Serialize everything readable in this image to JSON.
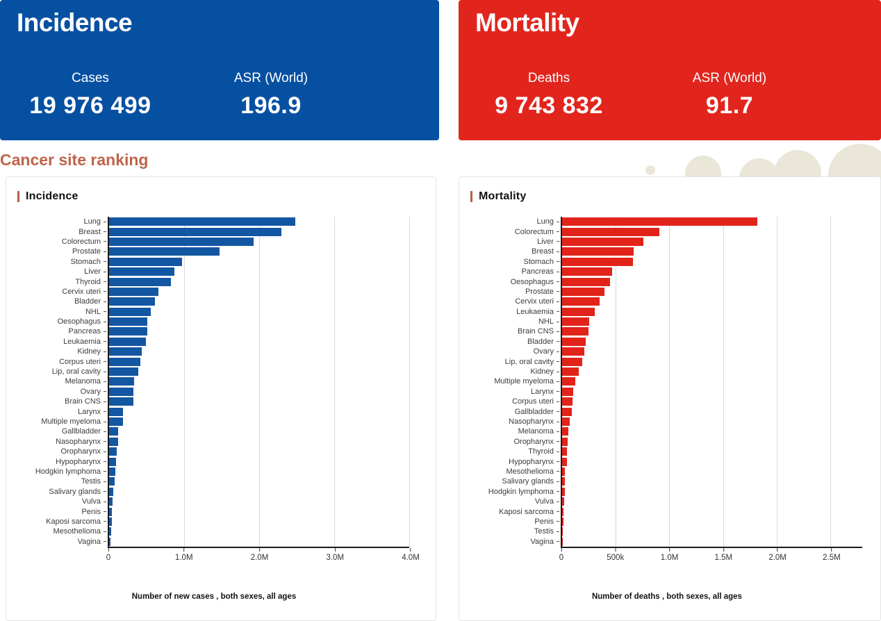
{
  "theme": {
    "incidence_color": "#0650a2",
    "mortality_color": "#e1251d",
    "incidence_bar_color": "#1356a2",
    "mortality_bar_color": "#e2231a",
    "section_heading_color": "#bf6449",
    "accent_bar_color": "#b25f4a",
    "blob_color": "#eae6d8"
  },
  "summary": {
    "incidence": {
      "title": "Incidence",
      "stat1_label": "Cases",
      "stat1_value": "19 976 499",
      "stat2_label": "ASR (World)",
      "stat2_value": "196.9"
    },
    "mortality": {
      "title": "Mortality",
      "stat1_label": "Deaths",
      "stat1_value": "9 743 832",
      "stat2_label": "ASR (World)",
      "stat2_value": "91.7"
    }
  },
  "section_title": "Cancer site ranking",
  "chart_data": [
    {
      "type": "bar",
      "orientation": "horizontal",
      "title": "Incidence",
      "xlabel": "Number of new cases , both sexes, all ages",
      "grid": true,
      "legend": false,
      "xlim": [
        0,
        4000000
      ],
      "x_ticks": [
        {
          "value": 0,
          "label": "0"
        },
        {
          "value": 1000000,
          "label": "1.0M"
        },
        {
          "value": 2000000,
          "label": "2.0M"
        },
        {
          "value": 3000000,
          "label": "3.0M"
        },
        {
          "value": 4000000,
          "label": "4.0M"
        }
      ],
      "categories": [
        "Lung",
        "Breast",
        "Colorectum",
        "Prostate",
        "Stomach",
        "Liver",
        "Thyroid",
        "Cervix uteri",
        "Bladder",
        "NHL",
        "Oesophagus",
        "Pancreas",
        "Leukaemia",
        "Kidney",
        "Corpus uteri",
        "Lip, oral cavity",
        "Melanoma",
        "Ovary",
        "Brain CNS",
        "Larynx",
        "Multiple myeloma",
        "Gallbladder",
        "Nasopharynx",
        "Oropharynx",
        "Hypopharynx",
        "Hodgkin lymphoma",
        "Testis",
        "Salivary glands",
        "Vulva",
        "Penis",
        "Kaposi sarcoma",
        "Mesothelioma",
        "Vagina"
      ],
      "values": [
        2480000,
        2296000,
        1926000,
        1468000,
        969000,
        866000,
        821000,
        662000,
        614000,
        553000,
        511000,
        511000,
        487000,
        434000,
        420000,
        390000,
        332000,
        325000,
        322000,
        189000,
        188000,
        122000,
        120000,
        106000,
        88000,
        82000,
        74000,
        55000,
        47000,
        38000,
        35000,
        31000,
        19000
      ]
    },
    {
      "type": "bar",
      "orientation": "horizontal",
      "title": "Mortality",
      "xlabel": "Number of deaths , both sexes, all ages",
      "grid": true,
      "legend": false,
      "xlim": [
        0,
        2796000
      ],
      "x_ticks": [
        {
          "value": 0,
          "label": "0"
        },
        {
          "value": 500000,
          "label": "500k"
        },
        {
          "value": 1000000,
          "label": "1.0M"
        },
        {
          "value": 1500000,
          "label": "1.5M"
        },
        {
          "value": 2000000,
          "label": "2.0M"
        },
        {
          "value": 2500000,
          "label": "2.5M"
        }
      ],
      "categories": [
        "Lung",
        "Colorectum",
        "Liver",
        "Breast",
        "Stomach",
        "Pancreas",
        "Oesophagus",
        "Prostate",
        "Cervix uteri",
        "Leukaemia",
        "NHL",
        "Brain CNS",
        "Bladder",
        "Ovary",
        "Lip, oral cavity",
        "Kidney",
        "Multiple myeloma",
        "Larynx",
        "Corpus uteri",
        "Gallbladder",
        "Nasopharynx",
        "Melanoma",
        "Oropharynx",
        "Thyroid",
        "Hypopharynx",
        "Mesothelioma",
        "Salivary glands",
        "Hodgkin lymphoma",
        "Vulva",
        "Kaposi sarcoma",
        "Penis",
        "Testis",
        "Vagina"
      ],
      "values": [
        1817000,
        904000,
        759000,
        666000,
        660000,
        467000,
        445000,
        397000,
        349000,
        305000,
        250000,
        248000,
        221000,
        207000,
        188000,
        156000,
        121000,
        103000,
        98000,
        89000,
        73000,
        59000,
        52000,
        48000,
        44000,
        26000,
        23000,
        23000,
        19000,
        15000,
        13000,
        9000,
        8000
      ]
    }
  ]
}
